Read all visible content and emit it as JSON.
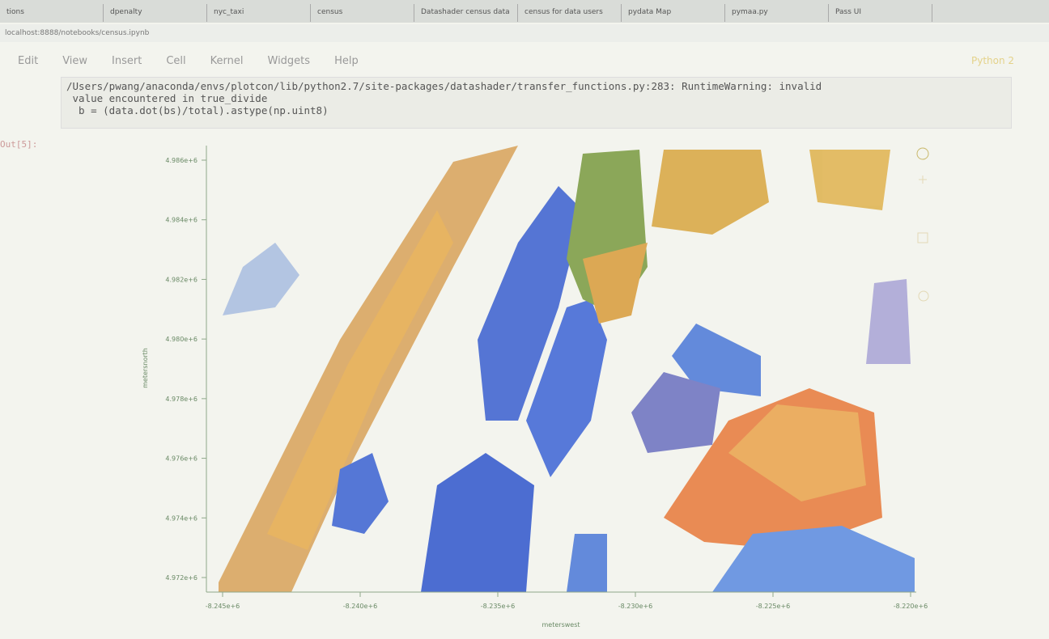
{
  "browser": {
    "tabs": [
      "tions",
      "dpenalty",
      "nyc_taxi",
      "census",
      "Datashader census data",
      "census for data users",
      "pydata Map",
      "pymaa.py",
      "Pass UI"
    ],
    "url": "localhost:8888/notebooks/census.ipynb"
  },
  "menu": [
    "Edit",
    "View",
    "Insert",
    "Cell",
    "Kernel",
    "Widgets",
    "Help"
  ],
  "kernel": "Python 2",
  "warning": [
    "/Users/pwang/anaconda/envs/plotcon/lib/python2.7/site-packages/datashader/transfer_functions.py:283: RuntimeWarning: invalid",
    " value encountered in true_divide",
    "  b = (data.dot(bs)/total).astype(np.uint8)"
  ],
  "output_prompt": "Out[5]:",
  "plot": {
    "yticks": [
      "4.986e+6",
      "4.984e+6",
      "4.982e+6",
      "4.980e+6",
      "4.978e+6",
      "4.976e+6",
      "4.974e+6",
      "4.972e+6"
    ],
    "xticks": [
      "-8.245e+6",
      "-8.240e+6",
      "-8.235e+6",
      "-8.230e+6",
      "-8.225e+6",
      "-8.220e+6"
    ],
    "xlabel": "meterswest",
    "ylabel": "metersnorth"
  }
}
